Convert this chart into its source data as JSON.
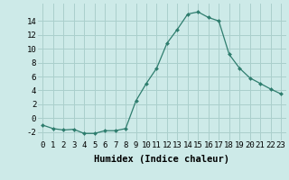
{
  "x": [
    0,
    1,
    2,
    3,
    4,
    5,
    6,
    7,
    8,
    9,
    10,
    11,
    12,
    13,
    14,
    15,
    16,
    17,
    18,
    19,
    20,
    21,
    22,
    23
  ],
  "y": [
    -1.0,
    -1.5,
    -1.7,
    -1.6,
    -2.2,
    -2.2,
    -1.8,
    -1.8,
    -1.5,
    2.5,
    5.0,
    7.2,
    10.8,
    12.8,
    15.0,
    15.3,
    14.5,
    14.0,
    9.2,
    7.2,
    5.8,
    5.0,
    4.2,
    3.5
  ],
  "line_color": "#2e7d6e",
  "marker": "D",
  "marker_size": 2.0,
  "bg_color": "#cdeae8",
  "grid_color": "#aacfcc",
  "xlabel": "Humidex (Indice chaleur)",
  "xlim": [
    -0.5,
    23.5
  ],
  "ylim": [
    -3.2,
    16.5
  ],
  "yticks": [
    -2,
    0,
    2,
    4,
    6,
    8,
    10,
    12,
    14
  ],
  "xtick_labels": [
    "0",
    "1",
    "2",
    "3",
    "4",
    "5",
    "6",
    "7",
    "8",
    "9",
    "10",
    "11",
    "12",
    "13",
    "14",
    "15",
    "16",
    "17",
    "18",
    "19",
    "20",
    "21",
    "22",
    "23"
  ],
  "xlabel_fontsize": 7.5,
  "tick_fontsize": 6.5
}
